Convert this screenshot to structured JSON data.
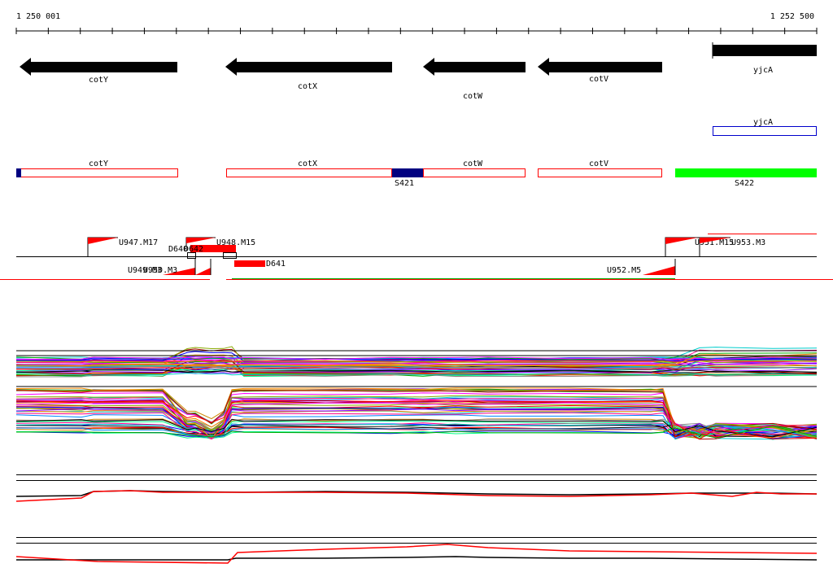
{
  "ruler": {
    "start_label": "1 250 001",
    "end_label": "1 252 500"
  },
  "genes_arrows": [
    {
      "name": "cotY",
      "strand": "-"
    },
    {
      "name": "cotX",
      "strand": "-"
    },
    {
      "name": "cotW",
      "strand": "-"
    },
    {
      "name": "cotV",
      "strand": "-"
    },
    {
      "name": "yjcA",
      "strand": "+"
    }
  ],
  "gene_box_labels": {
    "yjcA": "yjcA"
  },
  "annotation_boxes": [
    {
      "name": "cotY"
    },
    {
      "name": "cotX"
    },
    {
      "name": "cotW"
    },
    {
      "name": "cotV"
    }
  ],
  "segments": [
    {
      "name": "S421",
      "color": "#000080"
    },
    {
      "name": "S422",
      "color": "#00ff00"
    }
  ],
  "features": [
    {
      "name": "U947.M17"
    },
    {
      "name": "U948.M15"
    },
    {
      "name": "D640"
    },
    {
      "name": "D642"
    },
    {
      "name": "D641"
    },
    {
      "name": "U949.M3"
    },
    {
      "name": "U950.M3"
    },
    {
      "name": "U951.M15"
    },
    {
      "name": "U953.M3"
    },
    {
      "name": "U952.M5"
    }
  ],
  "colors": {
    "arrow": "#000000",
    "box_outline": "#ff0000",
    "feature": "#ff0000",
    "yjcA_outline": "#0000cc",
    "segment_green": "#00ff00",
    "segment_blue": "#000080"
  }
}
